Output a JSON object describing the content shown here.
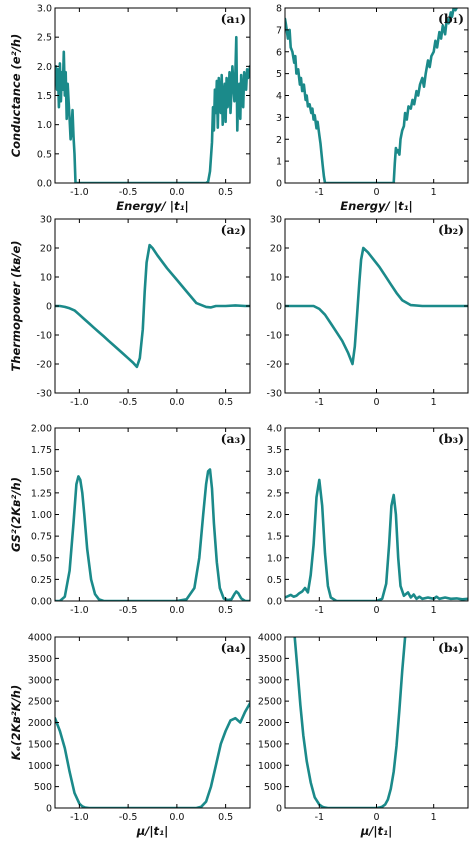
{
  "colors": {
    "line": "#1b8a8a",
    "axes": "#000000",
    "background": "#ffffff"
  },
  "chart_data": [
    {
      "type": "line",
      "panel": "a1",
      "tag": "(a₁)",
      "ylabel": "Conductance (e²/h)",
      "xlabel": "Energy/ |t₁|",
      "xlim": [
        -1.25,
        0.75
      ],
      "ylim": [
        0,
        3.0
      ],
      "xticks": [
        -1.0,
        -0.5,
        0.0,
        0.5
      ],
      "xtick_labels": [
        "-1.0",
        "-0.5",
        "0.0",
        "0.5"
      ],
      "yticks": [
        0,
        0.5,
        1.0,
        1.5,
        2.0,
        2.5,
        3.0
      ],
      "ytick_labels": [
        "0.0",
        "0.5",
        "1.0",
        "1.5",
        "2.0",
        "2.5",
        "3.0"
      ],
      "series": [
        {
          "x": [
            -1.25,
            -1.24,
            -1.23,
            -1.22,
            -1.21,
            -1.2,
            -1.19,
            -1.18,
            -1.17,
            -1.16,
            -1.15,
            -1.14,
            -1.13,
            -1.12,
            -1.11,
            -1.1,
            -1.09,
            -1.08,
            -1.07,
            -1.06,
            -1.05,
            -1.04,
            -1.03,
            -0.5,
            0.0,
            0.3,
            0.32,
            0.34,
            0.36,
            0.37,
            0.38,
            0.39,
            0.4,
            0.41,
            0.42,
            0.43,
            0.44,
            0.45,
            0.46,
            0.47,
            0.48,
            0.49,
            0.5,
            0.51,
            0.52,
            0.53,
            0.54,
            0.55,
            0.56,
            0.57,
            0.58,
            0.59,
            0.6,
            0.61,
            0.62,
            0.63,
            0.64,
            0.65,
            0.66,
            0.67,
            0.68,
            0.69,
            0.7,
            0.71,
            0.72,
            0.73,
            0.74,
            0.75
          ],
          "y": [
            1.7,
            2.0,
            1.6,
            1.95,
            1.3,
            2.05,
            1.4,
            1.9,
            1.6,
            2.25,
            1.5,
            1.9,
            1.1,
            1.7,
            1.4,
            1.1,
            0.75,
            0.9,
            1.25,
            0.8,
            0.5,
            0.0,
            0.0,
            0.0,
            0.0,
            0.0,
            0.02,
            0.2,
            0.7,
            1.3,
            0.9,
            1.6,
            1.2,
            1.75,
            0.95,
            1.8,
            1.4,
            1.2,
            1.85,
            1.0,
            1.5,
            1.7,
            1.05,
            1.8,
            1.3,
            1.5,
            1.9,
            1.2,
            1.6,
            2.0,
            1.7,
            1.4,
            1.9,
            2.5,
            0.9,
            1.6,
            1.7,
            1.1,
            1.85,
            1.5,
            1.3,
            1.9,
            1.7,
            1.6,
            1.95,
            1.8,
            1.9,
            2.0
          ]
        }
      ]
    },
    {
      "type": "line",
      "panel": "b1",
      "tag": "(b₁)",
      "ylabel": "",
      "xlabel": "Energy/ |t₁|",
      "xlim": [
        -1.6,
        1.6
      ],
      "ylim": [
        0,
        8
      ],
      "xticks": [
        -1,
        0,
        1
      ],
      "xtick_labels": [
        "-1",
        "0",
        "1"
      ],
      "yticks": [
        0,
        1,
        2,
        3,
        4,
        5,
        6,
        7,
        8
      ],
      "ytick_labels": [
        "0",
        "1",
        "2",
        "3",
        "4",
        "5",
        "6",
        "7",
        "8"
      ],
      "series": [
        {
          "x": [
            -1.6,
            -1.58,
            -1.55,
            -1.52,
            -1.5,
            -1.47,
            -1.44,
            -1.42,
            -1.4,
            -1.37,
            -1.34,
            -1.32,
            -1.3,
            -1.27,
            -1.24,
            -1.22,
            -1.2,
            -1.17,
            -1.14,
            -1.12,
            -1.1,
            -1.08,
            -1.05,
            -1.03,
            -1.0,
            -0.98,
            -0.96,
            -0.94,
            -0.92,
            -0.9,
            0.0,
            0.3,
            0.32,
            0.34,
            0.36,
            0.38,
            0.4,
            0.42,
            0.45,
            0.48,
            0.5,
            0.53,
            0.56,
            0.6,
            0.63,
            0.66,
            0.7,
            0.73,
            0.76,
            0.8,
            0.83,
            0.86,
            0.9,
            0.93,
            0.96,
            1.0,
            1.03,
            1.06,
            1.1,
            1.13,
            1.16,
            1.2,
            1.23,
            1.26,
            1.3,
            1.32,
            1.35,
            1.38,
            1.4
          ],
          "y": [
            7.5,
            7.2,
            6.6,
            7.0,
            6.2,
            6.0,
            5.5,
            5.8,
            5.0,
            5.2,
            4.5,
            4.8,
            4.2,
            4.5,
            3.8,
            4.0,
            3.5,
            3.6,
            3.2,
            3.4,
            2.9,
            3.1,
            2.5,
            2.8,
            2.2,
            1.8,
            1.3,
            0.8,
            0.3,
            0.0,
            0.0,
            0.0,
            0.9,
            1.6,
            1.4,
            1.5,
            1.3,
            2.0,
            2.4,
            2.6,
            3.2,
            2.9,
            3.5,
            3.4,
            3.8,
            3.6,
            4.2,
            4.0,
            4.5,
            4.8,
            4.4,
            5.0,
            5.6,
            5.3,
            5.8,
            6.0,
            6.5,
            6.2,
            6.9,
            6.6,
            7.2,
            6.8,
            7.5,
            7.3,
            7.8,
            7.6,
            8.0,
            7.9,
            8.0
          ]
        }
      ]
    },
    {
      "type": "line",
      "panel": "a2",
      "tag": "(a₂)",
      "ylabel": "Thermopower (kʙ/e)",
      "xlabel": "",
      "xlim": [
        -1.25,
        0.75
      ],
      "ylim": [
        -30,
        30
      ],
      "xticks": [
        -1.0,
        -0.5,
        0.0,
        0.5
      ],
      "xtick_labels": [
        "-1.0",
        "-0.5",
        "0.0",
        "0.5"
      ],
      "yticks": [
        -30,
        -20,
        -10,
        0,
        10,
        20,
        30
      ],
      "ytick_labels": [
        "-30",
        "-20",
        "-10",
        "0",
        "10",
        "20",
        "30"
      ],
      "series": [
        {
          "x": [
            -1.25,
            -1.2,
            -1.15,
            -1.1,
            -1.05,
            -1.0,
            -0.95,
            -0.9,
            -0.85,
            -0.8,
            -0.75,
            -0.7,
            -0.65,
            -0.6,
            -0.55,
            -0.5,
            -0.45,
            -0.41,
            -0.38,
            -0.35,
            -0.33,
            -0.31,
            -0.28,
            -0.25,
            -0.2,
            -0.1,
            0.0,
            0.1,
            0.2,
            0.3,
            0.35,
            0.4,
            0.45,
            0.5,
            0.6,
            0.7,
            0.75
          ],
          "y": [
            0,
            0,
            -0.3,
            -0.8,
            -1.5,
            -3,
            -4.5,
            -6,
            -7.5,
            -9,
            -10.5,
            -12,
            -13.5,
            -15,
            -16.5,
            -18,
            -19.5,
            -21,
            -18,
            -8,
            5,
            15,
            21,
            20,
            17.5,
            13,
            9,
            5,
            1,
            -0.3,
            -0.5,
            0,
            0,
            0,
            0.2,
            0,
            0
          ]
        }
      ]
    },
    {
      "type": "line",
      "panel": "b2",
      "tag": "(b₂)",
      "ylabel": "",
      "xlabel": "",
      "xlim": [
        -1.6,
        1.6
      ],
      "ylim": [
        -30,
        30
      ],
      "xticks": [
        -1,
        0,
        1
      ],
      "xtick_labels": [
        "-1",
        "0",
        "1"
      ],
      "yticks": [
        -30,
        -20,
        -10,
        0,
        10,
        20,
        30
      ],
      "ytick_labels": [
        "-30",
        "-20",
        "-10",
        "0",
        "10",
        "20",
        "30"
      ],
      "series": [
        {
          "x": [
            -1.6,
            -1.3,
            -1.1,
            -1.0,
            -0.9,
            -0.8,
            -0.7,
            -0.6,
            -0.5,
            -0.42,
            -0.38,
            -0.34,
            -0.3,
            -0.27,
            -0.23,
            -0.15,
            -0.05,
            0.05,
            0.15,
            0.25,
            0.35,
            0.45,
            0.6,
            0.8,
            1.2,
            1.6
          ],
          "y": [
            0,
            0,
            0,
            -1,
            -3,
            -6,
            -9,
            -12,
            -16,
            -20,
            -14,
            -3,
            8,
            16,
            20,
            18.5,
            16,
            13.5,
            10.5,
            7.5,
            4.5,
            2.0,
            0.3,
            0,
            0,
            0
          ]
        }
      ]
    },
    {
      "type": "line",
      "panel": "a3",
      "tag": "(a₃)",
      "ylabel": "GS²(2Kʙ²/h)",
      "xlabel": "",
      "xlim": [
        -1.25,
        0.75
      ],
      "ylim": [
        0,
        2.0
      ],
      "xticks": [
        -1.0,
        -0.5,
        0.0,
        0.5
      ],
      "xtick_labels": [
        "-1.0",
        "-0.5",
        "0.0",
        "0.5"
      ],
      "yticks": [
        0,
        0.25,
        0.5,
        0.75,
        1.0,
        1.25,
        1.5,
        1.75,
        2.0
      ],
      "ytick_labels": [
        "0.00",
        "0.25",
        "0.50",
        "0.75",
        "1.00",
        "1.25",
        "1.50",
        "1.75",
        "2.00"
      ],
      "series": [
        {
          "x": [
            -1.25,
            -1.2,
            -1.15,
            -1.1,
            -1.06,
            -1.03,
            -1.01,
            -0.99,
            -0.97,
            -0.95,
            -0.92,
            -0.88,
            -0.84,
            -0.8,
            -0.75,
            -0.7,
            -0.6,
            -0.4,
            -0.2,
            0.0,
            0.1,
            0.18,
            0.23,
            0.27,
            0.3,
            0.32,
            0.34,
            0.36,
            0.38,
            0.41,
            0.44,
            0.48,
            0.52,
            0.56,
            0.59,
            0.61,
            0.63,
            0.66,
            0.7,
            0.75
          ],
          "y": [
            0,
            0,
            0.05,
            0.35,
            0.9,
            1.35,
            1.44,
            1.4,
            1.25,
            1.0,
            0.6,
            0.25,
            0.08,
            0.02,
            0,
            0,
            0,
            0,
            0,
            0,
            0.02,
            0.15,
            0.5,
            1.0,
            1.35,
            1.5,
            1.52,
            1.3,
            0.9,
            0.45,
            0.15,
            0.03,
            0.01,
            0.02,
            0.08,
            0.11,
            0.09,
            0.03,
            0,
            0
          ]
        }
      ]
    },
    {
      "type": "line",
      "panel": "b3",
      "tag": "(b₃)",
      "ylabel": "",
      "xlabel": "",
      "xlim": [
        -1.6,
        1.6
      ],
      "ylim": [
        0,
        4.0
      ],
      "xticks": [
        -1,
        0,
        1
      ],
      "xtick_labels": [
        "-1",
        "0",
        "1"
      ],
      "yticks": [
        0,
        0.5,
        1.0,
        1.5,
        2.0,
        2.5,
        3.0,
        3.5,
        4.0
      ],
      "ytick_labels": [
        "0.0",
        "0.5",
        "1.0",
        "1.5",
        "2.0",
        "2.5",
        "3.0",
        "3.5",
        "4.0"
      ],
      "series": [
        {
          "x": [
            -1.6,
            -1.5,
            -1.45,
            -1.4,
            -1.35,
            -1.3,
            -1.25,
            -1.2,
            -1.15,
            -1.1,
            -1.05,
            -1.0,
            -0.95,
            -0.9,
            -0.85,
            -0.8,
            -0.7,
            -0.5,
            -0.2,
            0.0,
            0.1,
            0.17,
            0.22,
            0.26,
            0.3,
            0.34,
            0.38,
            0.42,
            0.48,
            0.55,
            0.6,
            0.65,
            0.7,
            0.75,
            0.8,
            0.9,
            1.0,
            1.05,
            1.1,
            1.2,
            1.3,
            1.4,
            1.5,
            1.6
          ],
          "y": [
            0.08,
            0.14,
            0.1,
            0.12,
            0.18,
            0.22,
            0.3,
            0.2,
            0.6,
            1.3,
            2.4,
            2.8,
            2.2,
            1.1,
            0.35,
            0.08,
            0,
            0,
            0,
            0,
            0.05,
            0.4,
            1.3,
            2.2,
            2.45,
            2.0,
            1.0,
            0.35,
            0.12,
            0.2,
            0.08,
            0.15,
            0.05,
            0.1,
            0.05,
            0.08,
            0.05,
            0.1,
            0.05,
            0.08,
            0.05,
            0.06,
            0.04,
            0.05
          ]
        }
      ]
    },
    {
      "type": "line",
      "panel": "a4",
      "tag": "(a₄)",
      "ylabel": "Kₑ(2Kʙ²K/h)",
      "xlabel": "μ/|t₁|",
      "xlim": [
        -1.25,
        0.75
      ],
      "ylim": [
        0,
        4000
      ],
      "xticks": [
        -1.0,
        -0.5,
        0.0,
        0.5
      ],
      "xtick_labels": [
        "-1.0",
        "-0.5",
        "0.0",
        "0.5"
      ],
      "yticks": [
        0,
        500,
        1000,
        1500,
        2000,
        2500,
        3000,
        3500,
        4000
      ],
      "ytick_labels": [
        "0",
        "500",
        "1000",
        "1500",
        "2000",
        "2500",
        "3000",
        "3500",
        "4000"
      ],
      "series": [
        {
          "x": [
            -1.25,
            -1.2,
            -1.15,
            -1.1,
            -1.05,
            -1.0,
            -0.97,
            -0.94,
            -0.9,
            -0.8,
            -0.5,
            0.0,
            0.2,
            0.25,
            0.3,
            0.35,
            0.4,
            0.45,
            0.5,
            0.55,
            0.6,
            0.65,
            0.7,
            0.75
          ],
          "y": [
            2100,
            1800,
            1400,
            850,
            350,
            100,
            40,
            10,
            0,
            0,
            0,
            0,
            0,
            30,
            150,
            500,
            1000,
            1500,
            1800,
            2050,
            2100,
            2000,
            2250,
            2450
          ]
        }
      ]
    },
    {
      "type": "line",
      "panel": "b4",
      "tag": "(b₄)",
      "ylabel": "",
      "xlabel": "μ/|t₁|",
      "xlim": [
        -1.6,
        1.6
      ],
      "ylim": [
        0,
        4000
      ],
      "xticks": [
        -1,
        0,
        1
      ],
      "xtick_labels": [
        "-1",
        "0",
        "1"
      ],
      "yticks": [
        0,
        500,
        1000,
        1500,
        2000,
        2500,
        3000,
        3500,
        4000
      ],
      "ytick_labels": [
        "0",
        "500",
        "1000",
        "1500",
        "2000",
        "2500",
        "3000",
        "3500",
        "4000"
      ],
      "series": [
        {
          "x": [
            -1.43,
            -1.38,
            -1.33,
            -1.28,
            -1.22,
            -1.15,
            -1.08,
            -1.0,
            -0.95,
            -0.9,
            -0.85,
            -0.7,
            -0.5,
            -0.2,
            0.0,
            0.05,
            0.1,
            0.15,
            0.2,
            0.25,
            0.3,
            0.35,
            0.4,
            0.45,
            0.5
          ],
          "y": [
            4000,
            3200,
            2400,
            1700,
            1100,
            600,
            250,
            80,
            30,
            10,
            0,
            0,
            0,
            0,
            0,
            10,
            30,
            80,
            200,
            450,
            850,
            1450,
            2300,
            3200,
            4000
          ]
        }
      ]
    }
  ]
}
